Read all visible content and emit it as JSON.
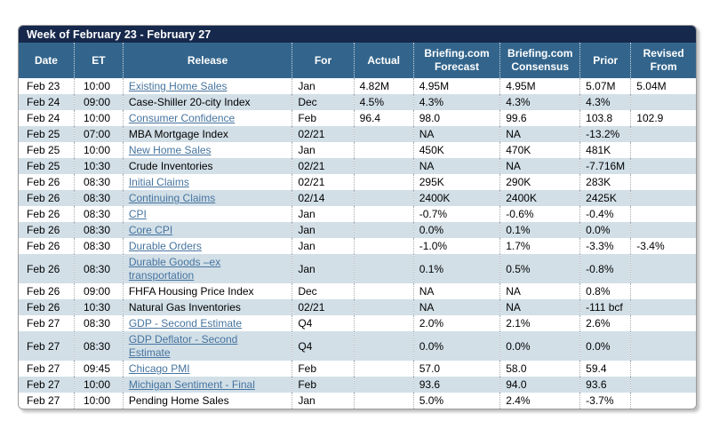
{
  "calendar": {
    "title": "Week of February 23 - February 27",
    "colors": {
      "title_bar_bg": "#16294c",
      "header_bg": "#33658c",
      "stripe_row_bg": "#d2dfe7",
      "link_color": "#46749f",
      "header_text": "#ffffff",
      "body_text": "#000000"
    },
    "columns": {
      "date": "Date",
      "et": "ET",
      "release": "Release",
      "for": "For",
      "actual": "Actual",
      "forecast": "Briefing.com\nForecast",
      "consensus": "Briefing.com\nConsensus",
      "prior": "Prior",
      "revised_from": "Revised\nFrom"
    },
    "rows": [
      {
        "date": "Feb 23",
        "et": "10:00",
        "release": "Existing Home Sales",
        "link": true,
        "for": "Jan",
        "actual": "4.82M",
        "forecast": "4.95M",
        "consensus": "4.95M",
        "prior": "5.07M",
        "revised_from": "5.04M"
      },
      {
        "date": "Feb 24",
        "et": "09:00",
        "release": "Case-Shiller 20-city Index",
        "link": false,
        "for": "Dec",
        "actual": "4.5%",
        "forecast": "4.3%",
        "consensus": "4.3%",
        "prior": "4.3%",
        "revised_from": ""
      },
      {
        "date": "Feb 24",
        "et": "10:00",
        "release": "Consumer Confidence",
        "link": true,
        "for": "Feb",
        "actual": "96.4",
        "forecast": "98.0",
        "consensus": "99.6",
        "prior": "103.8",
        "revised_from": "102.9"
      },
      {
        "date": "Feb 25",
        "et": "07:00",
        "release": "MBA Mortgage Index",
        "link": false,
        "for": "02/21",
        "actual": "",
        "forecast": "NA",
        "consensus": "NA",
        "prior": "-13.2%",
        "revised_from": ""
      },
      {
        "date": "Feb 25",
        "et": "10:00",
        "release": "New Home Sales",
        "link": true,
        "for": "Jan",
        "actual": "",
        "forecast": "450K",
        "consensus": "470K",
        "prior": "481K",
        "revised_from": ""
      },
      {
        "date": "Feb 25",
        "et": "10:30",
        "release": "Crude Inventories",
        "link": false,
        "for": "02/21",
        "actual": "",
        "forecast": "NA",
        "consensus": "NA",
        "prior": "-7.716M",
        "revised_from": ""
      },
      {
        "date": "Feb 26",
        "et": "08:30",
        "release": "Initial Claims",
        "link": true,
        "for": "02/21",
        "actual": "",
        "forecast": "295K",
        "consensus": "290K",
        "prior": "283K",
        "revised_from": ""
      },
      {
        "date": "Feb 26",
        "et": "08:30",
        "release": "Continuing Claims",
        "link": true,
        "for": "02/14",
        "actual": "",
        "forecast": "2400K",
        "consensus": "2400K",
        "prior": "2425K",
        "revised_from": ""
      },
      {
        "date": "Feb 26",
        "et": "08:30",
        "release": "CPI",
        "link": true,
        "for": "Jan",
        "actual": "",
        "forecast": "-0.7%",
        "consensus": "-0.6%",
        "prior": "-0.4%",
        "revised_from": ""
      },
      {
        "date": "Feb 26",
        "et": "08:30",
        "release": "Core CPI",
        "link": true,
        "for": "Jan",
        "actual": "",
        "forecast": "0.0%",
        "consensus": "0.1%",
        "prior": "0.0%",
        "revised_from": ""
      },
      {
        "date": "Feb 26",
        "et": "08:30",
        "release": "Durable Orders",
        "link": true,
        "for": "Jan",
        "actual": "",
        "forecast": "-1.0%",
        "consensus": "1.7%",
        "prior": "-3.3%",
        "revised_from": "-3.4%"
      },
      {
        "date": "Feb 26",
        "et": "08:30",
        "release": "Durable Goods –ex\ntransportation",
        "link": true,
        "for": "Jan",
        "actual": "",
        "forecast": "0.1%",
        "consensus": "0.5%",
        "prior": "-0.8%",
        "revised_from": ""
      },
      {
        "date": "Feb 26",
        "et": "09:00",
        "release": "FHFA Housing Price Index",
        "link": false,
        "for": "Dec",
        "actual": "",
        "forecast": "NA",
        "consensus": "NA",
        "prior": "0.8%",
        "revised_from": ""
      },
      {
        "date": "Feb 26",
        "et": "10:30",
        "release": "Natural Gas Inventories",
        "link": false,
        "for": "02/21",
        "actual": "",
        "forecast": "NA",
        "consensus": "NA",
        "prior": "-111 bcf",
        "revised_from": ""
      },
      {
        "date": "Feb 27",
        "et": "08:30",
        "release": "GDP - Second Estimate",
        "link": true,
        "for": "Q4",
        "actual": "",
        "forecast": "2.0%",
        "consensus": "2.1%",
        "prior": "2.6%",
        "revised_from": ""
      },
      {
        "date": "Feb 27",
        "et": "08:30",
        "release": "GDP Deflator - Second\nEstimate",
        "link": true,
        "for": "Q4",
        "actual": "",
        "forecast": "0.0%",
        "consensus": "0.0%",
        "prior": "0.0%",
        "revised_from": ""
      },
      {
        "date": "Feb 27",
        "et": "09:45",
        "release": "Chicago PMI",
        "link": true,
        "for": "Feb",
        "actual": "",
        "forecast": "57.0",
        "consensus": "58.0",
        "prior": "59.4",
        "revised_from": ""
      },
      {
        "date": "Feb 27",
        "et": "10:00",
        "release": "Michigan Sentiment - Final",
        "link": true,
        "for": "Feb",
        "actual": "",
        "forecast": "93.6",
        "consensus": "94.0",
        "prior": "93.6",
        "revised_from": ""
      },
      {
        "date": "Feb 27",
        "et": "10:00",
        "release": "Pending Home Sales",
        "link": false,
        "for": "Jan",
        "actual": "",
        "forecast": "5.0%",
        "consensus": "2.4%",
        "prior": "-3.7%",
        "revised_from": ""
      }
    ]
  }
}
